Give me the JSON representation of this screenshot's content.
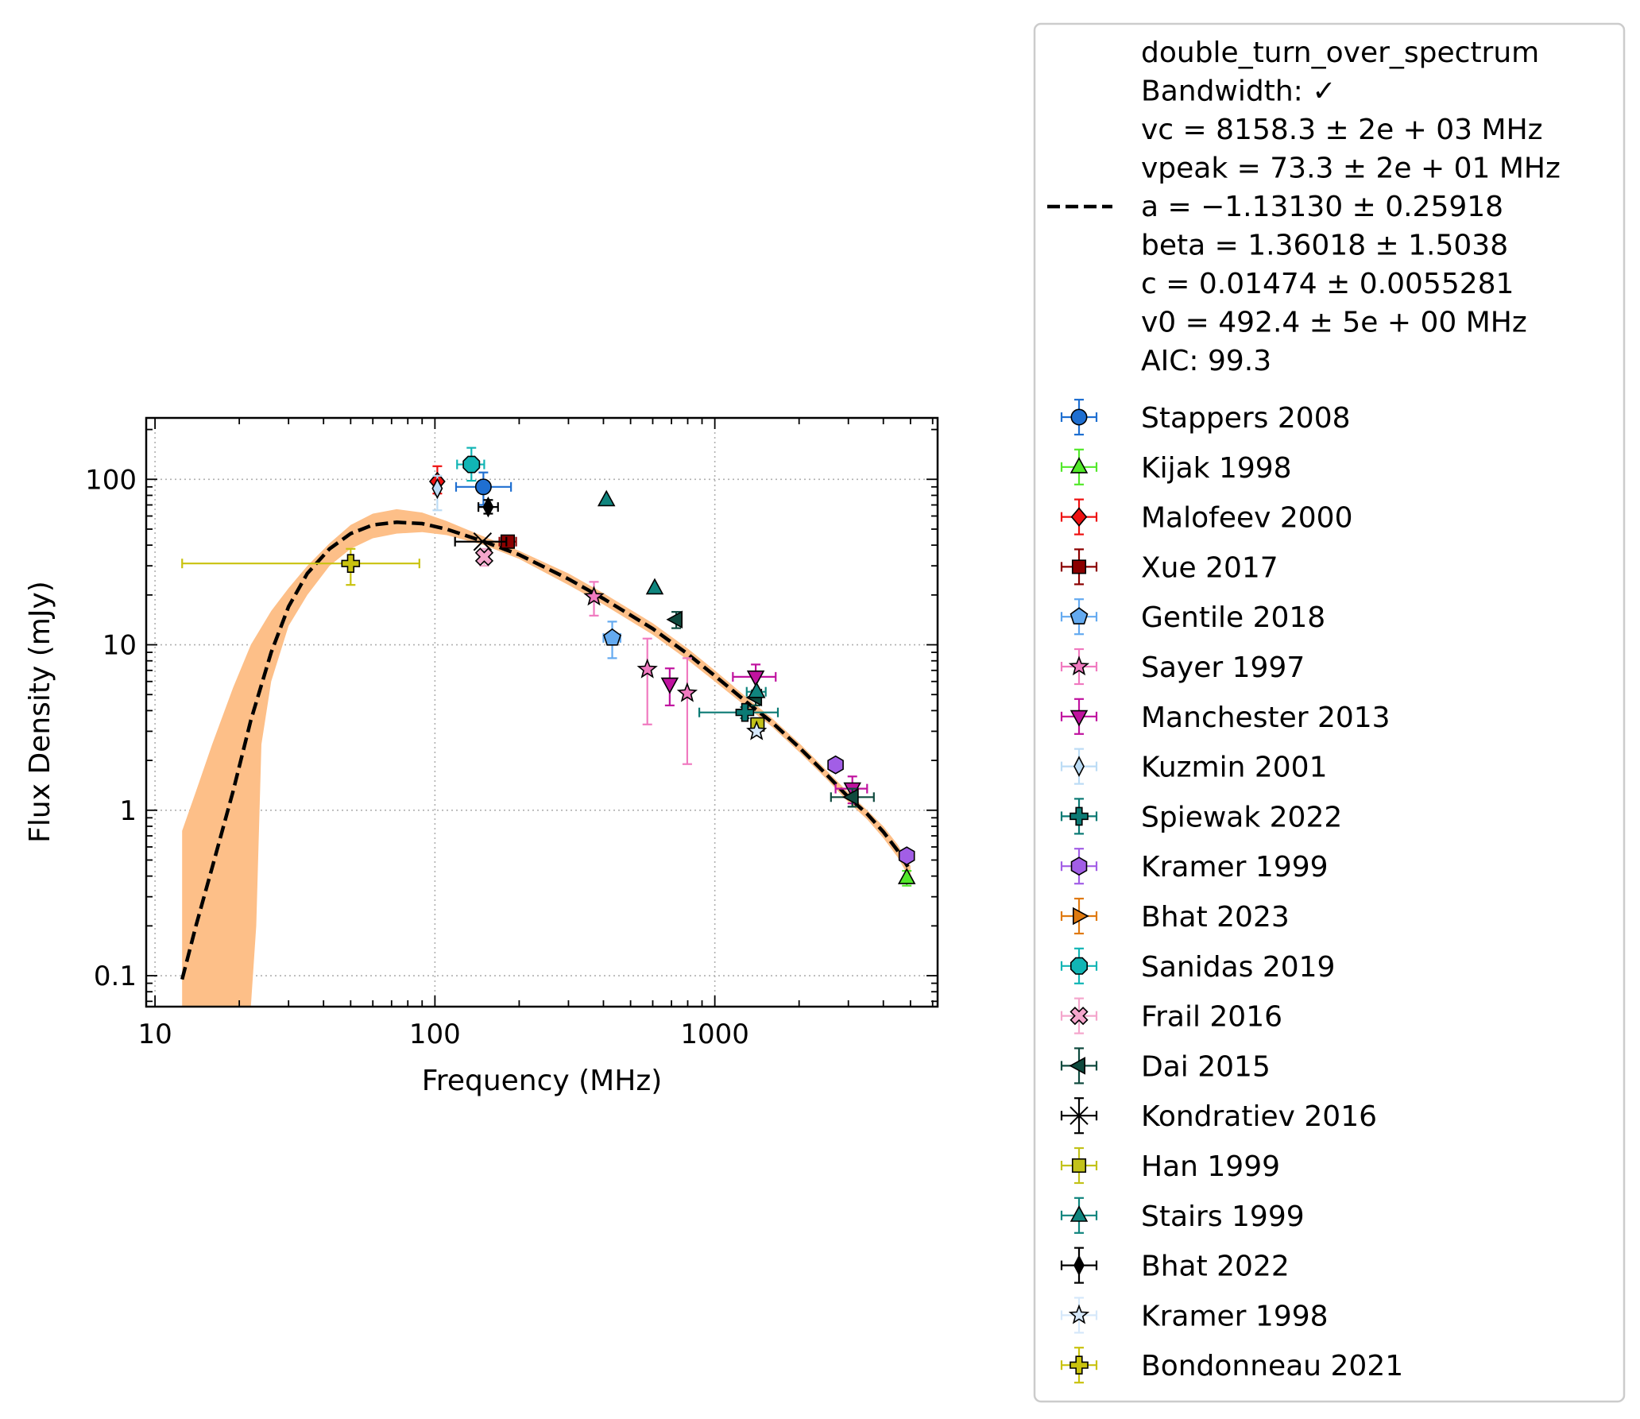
{
  "chart_data": {
    "type": "scatter",
    "xlabel": "Frequency (MHz)",
    "ylabel": "Flux Density (mJy)",
    "xscale": "log",
    "yscale": "log",
    "xlim": [
      9.3,
      6250
    ],
    "ylim": [
      0.065,
      235
    ],
    "xticks": [
      {
        "value": 10,
        "label": "10"
      },
      {
        "value": 100,
        "label": "100"
      },
      {
        "value": 1000,
        "label": "1000"
      }
    ],
    "yticks": [
      {
        "value": 0.1,
        "label": "0.1"
      },
      {
        "value": 1,
        "label": "1"
      },
      {
        "value": 10,
        "label": "10"
      },
      {
        "value": 100,
        "label": "100"
      }
    ],
    "grid": true,
    "legend_position": "outside-right",
    "fit": {
      "model": "double_turn_over_spectrum",
      "style": "dashed",
      "color": "#000000",
      "band_color": "#fdbf88",
      "legend_lines": [
        "double_turn_over_spectrum",
        "Bandwidth: ✓",
        "vc = 8158.3 ± 2e + 03 MHz",
        "vpeak = 73.3 ± 2e + 01 MHz",
        "a = −1.13130 ± 0.25918",
        "beta = 1.36018 ± 1.5038",
        "c = 0.01474 ± 0.0055281",
        "v0 = 492.4 ± 5e + 00 MHz",
        "AIC: 99.3"
      ],
      "curve": [
        [
          12.5,
          0.095
        ],
        [
          14,
          0.2
        ],
        [
          16,
          0.45
        ],
        [
          19,
          1.3
        ],
        [
          22,
          3.5
        ],
        [
          26,
          9
        ],
        [
          30,
          17
        ],
        [
          35,
          27
        ],
        [
          42,
          38
        ],
        [
          50,
          47
        ],
        [
          60,
          53
        ],
        [
          73,
          55
        ],
        [
          90,
          54
        ],
        [
          110,
          50
        ],
        [
          150,
          42
        ],
        [
          200,
          35
        ],
        [
          300,
          25
        ],
        [
          400,
          19
        ],
        [
          600,
          12.5
        ],
        [
          800,
          8.8
        ],
        [
          1000,
          6.5
        ],
        [
          1300,
          4.5
        ],
        [
          1600,
          3.4
        ],
        [
          2000,
          2.4
        ],
        [
          2500,
          1.65
        ],
        [
          3000,
          1.2
        ],
        [
          3500,
          0.95
        ],
        [
          4000,
          0.74
        ],
        [
          4500,
          0.57
        ],
        [
          5000,
          0.43
        ]
      ],
      "band_upper": [
        [
          12.5,
          0.75
        ],
        [
          14,
          1.3
        ],
        [
          16,
          2.5
        ],
        [
          19,
          5.5
        ],
        [
          22,
          10
        ],
        [
          26,
          16
        ],
        [
          30,
          22
        ],
        [
          35,
          30
        ],
        [
          42,
          41
        ],
        [
          50,
          53
        ],
        [
          60,
          62
        ],
        [
          73,
          66
        ],
        [
          90,
          63
        ],
        [
          110,
          56
        ],
        [
          150,
          45
        ],
        [
          200,
          37
        ],
        [
          300,
          27
        ],
        [
          400,
          20.5
        ],
        [
          600,
          13.5
        ],
        [
          800,
          9.5
        ],
        [
          1000,
          7.0
        ],
        [
          1300,
          4.8
        ],
        [
          1600,
          3.6
        ],
        [
          2000,
          2.55
        ],
        [
          2500,
          1.75
        ],
        [
          3000,
          1.28
        ],
        [
          3500,
          1.0
        ],
        [
          4000,
          0.8
        ],
        [
          4500,
          0.62
        ],
        [
          5000,
          0.46
        ]
      ],
      "band_lower": [
        [
          12.5,
          0.065
        ],
        [
          16,
          0.065
        ],
        [
          19,
          0.065
        ],
        [
          22,
          0.065
        ],
        [
          23,
          0.2
        ],
        [
          24,
          2.5
        ],
        [
          26,
          6
        ],
        [
          30,
          13
        ],
        [
          35,
          20
        ],
        [
          42,
          30
        ],
        [
          50,
          38
        ],
        [
          60,
          44
        ],
        [
          73,
          47
        ],
        [
          90,
          48
        ],
        [
          110,
          46
        ],
        [
          150,
          40
        ],
        [
          200,
          33
        ],
        [
          300,
          23
        ],
        [
          400,
          17.5
        ],
        [
          600,
          11.5
        ],
        [
          800,
          8.1
        ],
        [
          1000,
          6.0
        ],
        [
          1300,
          4.2
        ],
        [
          1600,
          3.2
        ],
        [
          2000,
          2.25
        ],
        [
          2500,
          1.55
        ],
        [
          3000,
          1.12
        ],
        [
          3500,
          0.88
        ],
        [
          4000,
          0.68
        ],
        [
          4500,
          0.52
        ],
        [
          5000,
          0.38
        ]
      ]
    },
    "series": [
      {
        "name": "Stappers 2008",
        "marker": "circle",
        "color": "#1f6fd1",
        "points": [
          {
            "x": 149,
            "y": 90,
            "xerr": [
              119,
              187
            ],
            "yerr": [
              70,
              110
            ]
          }
        ]
      },
      {
        "name": "Kijak 1998",
        "marker": "triangle-up",
        "color": "#52e82a",
        "points": [
          {
            "x": 4850,
            "y": 0.39,
            "yerr": [
              0.35,
              0.43
            ]
          }
        ]
      },
      {
        "name": "Malofeev 2000",
        "marker": "diamond",
        "color": "#ee1111",
        "points": [
          {
            "x": 102,
            "y": 97,
            "yerr": [
              82,
              120
            ]
          }
        ]
      },
      {
        "name": "Xue 2017",
        "marker": "square",
        "color": "#8b0000",
        "points": [
          {
            "x": 182,
            "y": 42,
            "xerr": [
              170,
              195
            ],
            "yerr": [
              39,
              45
            ]
          }
        ]
      },
      {
        "name": "Gentile 2018",
        "marker": "pentagon",
        "color": "#64aaf0",
        "points": [
          {
            "x": 430,
            "y": 11,
            "xerr": [
              400,
              460
            ],
            "yerr": [
              8.3,
              13.8
            ]
          }
        ]
      },
      {
        "name": "Sayer 1997",
        "marker": "star",
        "color": "#f07ac0",
        "points": [
          {
            "x": 370,
            "y": 19.5,
            "yerr": [
              15,
              24
            ]
          },
          {
            "x": 574,
            "y": 7.1,
            "yerr": [
              3.3,
              10.9
            ]
          },
          {
            "x": 797,
            "y": 5.1,
            "yerr": [
              1.9,
              8.3
            ]
          }
        ]
      },
      {
        "name": "Manchester 2013",
        "marker": "triangle-down",
        "color": "#c0139f",
        "points": [
          {
            "x": 690,
            "y": 5.8,
            "yerr": [
              4.3,
              7.2
            ]
          },
          {
            "x": 1400,
            "y": 6.4,
            "xerr": [
              1160,
              1650
            ],
            "yerr": [
              5.2,
              7.6
            ]
          },
          {
            "x": 3100,
            "y": 1.35,
            "xerr": [
              2700,
              3500
            ],
            "yerr": [
              1.1,
              1.6
            ]
          }
        ]
      },
      {
        "name": "Kuzmin 2001",
        "marker": "thin-diamond",
        "color": "#bcdcf5",
        "points": [
          {
            "x": 102,
            "y": 88,
            "yerr": [
              65,
              105
            ]
          }
        ]
      },
      {
        "name": "Spiewak 2022",
        "marker": "plus",
        "color": "#0b7a74",
        "points": [
          {
            "x": 1280,
            "y": 3.9,
            "xerr": [
              880,
              1680
            ],
            "yerr": [
              3.6,
              4.2
            ]
          }
        ]
      },
      {
        "name": "Kramer 1999",
        "marker": "hexagon",
        "color": "#a25ee6",
        "points": [
          {
            "x": 2700,
            "y": 1.88
          },
          {
            "x": 4850,
            "y": 0.53
          }
        ]
      },
      {
        "name": "Bhat 2023",
        "marker": "triangle-right",
        "color": "#e07a10",
        "points": []
      },
      {
        "name": "Sanidas 2019",
        "marker": "octagon",
        "color": "#11b5b5",
        "points": [
          {
            "x": 135,
            "y": 123,
            "xerr": [
              120,
              150
            ],
            "yerr": [
              98,
              155
            ]
          }
        ]
      },
      {
        "name": "Frail 2016",
        "marker": "x-filled",
        "color": "#f4a6cc",
        "points": [
          {
            "x": 150,
            "y": 34,
            "yerr": [
              30,
              38
            ]
          }
        ]
      },
      {
        "name": "Dai 2015",
        "marker": "triangle-left",
        "color": "#0f4a3e",
        "points": [
          {
            "x": 728,
            "y": 14.2,
            "yerr": [
              12.6,
              15.8
            ]
          },
          {
            "x": 1400,
            "y": 4.8,
            "yerr": [
              4.3,
              5.3
            ]
          },
          {
            "x": 3100,
            "y": 1.2,
            "xerr": [
              2600,
              3700
            ],
            "yerr": [
              1.05,
              1.35
            ]
          }
        ]
      },
      {
        "name": "Kondratiev 2016",
        "marker": "x-thin",
        "color": "#000000",
        "points": [
          {
            "x": 148,
            "y": 42,
            "xerr": [
              118,
              180
            ]
          }
        ]
      },
      {
        "name": "Han 1999",
        "marker": "square",
        "color": "#c2c21a",
        "points": [
          {
            "x": 1420,
            "y": 3.3
          }
        ]
      },
      {
        "name": "Stairs 1999",
        "marker": "triangle-up",
        "color": "#10857e",
        "points": [
          {
            "x": 410,
            "y": 75
          },
          {
            "x": 610,
            "y": 22
          },
          {
            "x": 1410,
            "y": 5.2,
            "xerr": [
              1300,
              1520
            ]
          }
        ]
      },
      {
        "name": "Bhat 2022",
        "marker": "thin-diamond",
        "color": "#000000",
        "points": [
          {
            "x": 155,
            "y": 68,
            "xerr": [
              143,
              168
            ],
            "yerr": [
              62,
              75
            ]
          }
        ]
      },
      {
        "name": "Kramer 1998",
        "marker": "star",
        "color": "#d6e8fa",
        "points": [
          {
            "x": 1410,
            "y": 3.0
          }
        ]
      },
      {
        "name": "Bondonneau 2021",
        "marker": "plus",
        "color": "#c9c20e",
        "points": [
          {
            "x": 50,
            "y": 31,
            "xerr": [
              12.5,
              88
            ],
            "yerr": [
              23,
              38
            ]
          }
        ]
      }
    ]
  }
}
